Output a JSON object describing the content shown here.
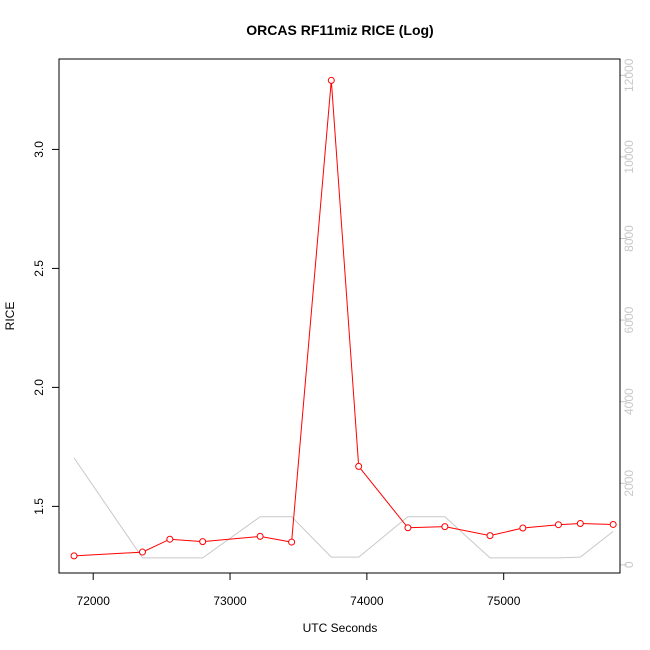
{
  "chart_data": {
    "type": "line",
    "title": "ORCAS RF11miz RICE (Log)",
    "xlabel": "UTC Seconds",
    "ylabel": "RICE",
    "y2label": "",
    "xlim": [
      71750,
      75850
    ],
    "ylim": [
      1.22,
      3.38
    ],
    "y2lim": [
      -200,
      12400
    ],
    "x_ticks": [
      72000,
      73000,
      74000,
      75000
    ],
    "x_tick_labels": [
      "72000",
      "73000",
      "74000",
      "75000"
    ],
    "y_ticks": [
      1.5,
      2.0,
      2.5,
      3.0
    ],
    "y_tick_labels": [
      "1.5",
      "2.0",
      "2.5",
      "3.0"
    ],
    "y2_ticks": [
      0,
      2000,
      4000,
      6000,
      8000,
      10000,
      12000
    ],
    "y2_tick_labels": [
      "0",
      "2000",
      "4000",
      "6000",
      "8000",
      "10000",
      "12000"
    ],
    "grid": false,
    "legend": "none",
    "series": [
      {
        "axis": "left",
        "color": "#ff0000",
        "marker": "open-circle",
        "x": [
          71860,
          72360,
          72560,
          72800,
          73220,
          73450,
          73740,
          73940,
          74300,
          74570,
          74900,
          75140,
          75400,
          75560,
          75800
        ],
        "y": [
          1.292,
          1.308,
          1.362,
          1.352,
          1.374,
          1.35,
          3.29,
          1.668,
          1.41,
          1.415,
          1.377,
          1.409,
          1.423,
          1.428,
          1.424
        ]
      },
      {
        "axis": "right",
        "color": "#c8c8c8",
        "marker": "none",
        "x": [
          71860,
          72360,
          72560,
          72800,
          73220,
          73450,
          73740,
          73940,
          74300,
          74570,
          74900,
          75140,
          75400,
          75560,
          75800
        ],
        "y": [
          2620,
          170,
          170,
          170,
          1180,
          1180,
          190,
          190,
          1180,
          1180,
          170,
          170,
          170,
          190,
          820
        ]
      }
    ]
  }
}
